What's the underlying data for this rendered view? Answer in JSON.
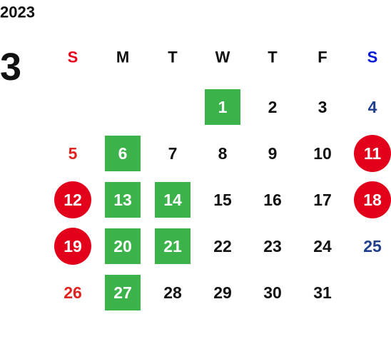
{
  "header": {
    "year": "2023",
    "month": "3"
  },
  "weekdays": [
    "S",
    "M",
    "T",
    "W",
    "T",
    "F",
    "S"
  ],
  "weekday_colors": [
    "#e8001c",
    "#111111",
    "#111111",
    "#111111",
    "#111111",
    "#111111",
    "#0018d8"
  ],
  "date_colors": [
    "#e0231f",
    "#111111",
    "#111111",
    "#111111",
    "#111111",
    "#111111",
    "#1f3e8c"
  ],
  "highlight_colors": {
    "green-square": "#3cb24a",
    "red-circle": "#e3001b"
  },
  "weeks": [
    [
      null,
      null,
      null,
      {
        "label": "1",
        "style": "green-square"
      },
      {
        "label": "2"
      },
      {
        "label": "3"
      },
      {
        "label": "4"
      }
    ],
    [
      {
        "label": "5"
      },
      {
        "label": "6",
        "style": "green-square"
      },
      {
        "label": "7"
      },
      {
        "label": "8"
      },
      {
        "label": "9"
      },
      {
        "label": "10"
      },
      {
        "label": "11",
        "style": "red-circle"
      }
    ],
    [
      {
        "label": "12",
        "style": "red-circle"
      },
      {
        "label": "13",
        "style": "green-square"
      },
      {
        "label": "14",
        "style": "green-square"
      },
      {
        "label": "15"
      },
      {
        "label": "16"
      },
      {
        "label": "17"
      },
      {
        "label": "18",
        "style": "red-circle"
      }
    ],
    [
      {
        "label": "19",
        "style": "red-circle"
      },
      {
        "label": "20",
        "style": "green-square"
      },
      {
        "label": "21",
        "style": "green-square"
      },
      {
        "label": "22"
      },
      {
        "label": "23"
      },
      {
        "label": "24"
      },
      {
        "label": "25"
      }
    ],
    [
      {
        "label": "26"
      },
      {
        "label": "27",
        "style": "green-square"
      },
      {
        "label": "28"
      },
      {
        "label": "29"
      },
      {
        "label": "30"
      },
      {
        "label": "31"
      },
      null
    ]
  ]
}
